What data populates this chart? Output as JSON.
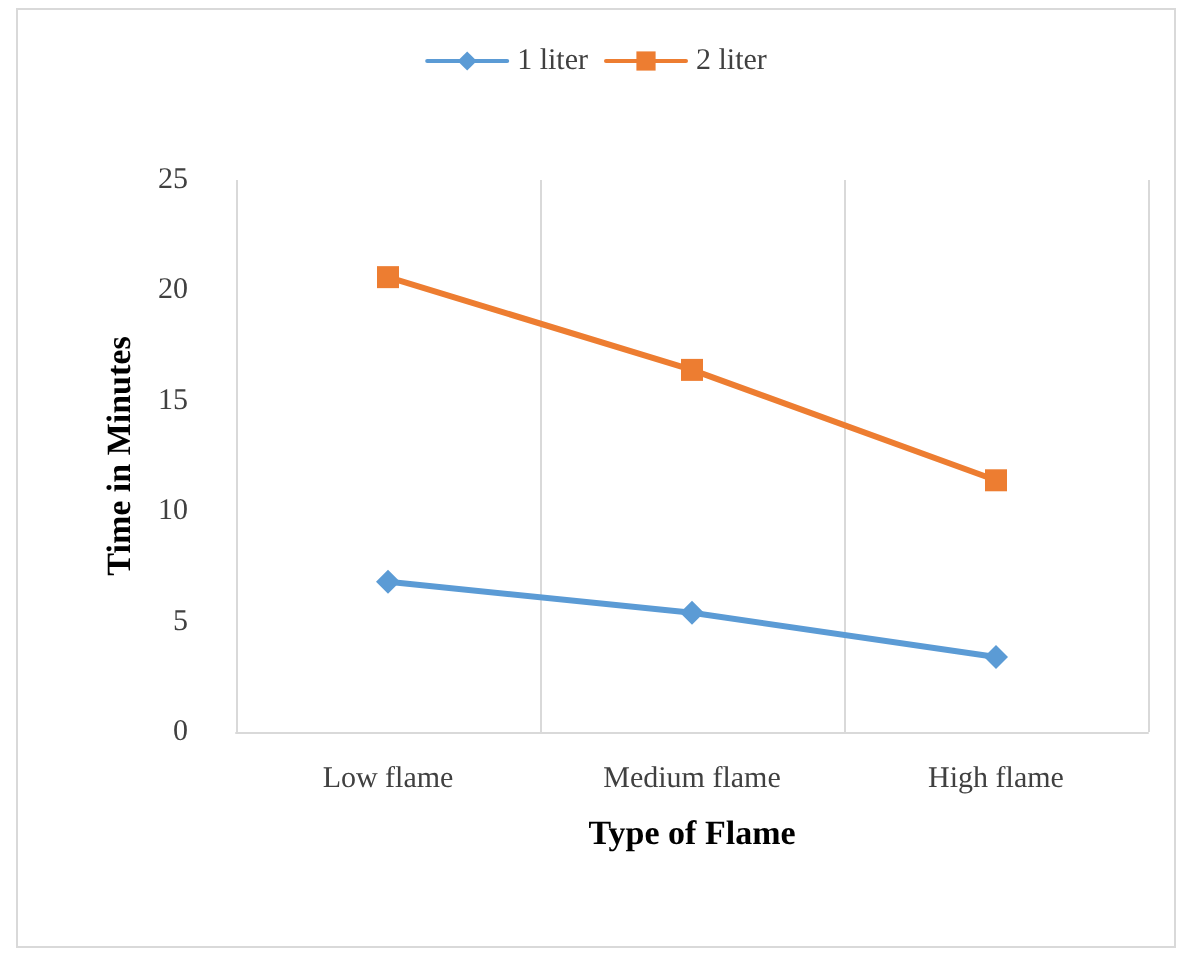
{
  "chart_data": {
    "type": "line",
    "xlabel": "Type of Flame",
    "ylabel": "Time in Minutes",
    "categories": [
      "Low flame",
      "Medium flame",
      "High flame"
    ],
    "series": [
      {
        "name": "1 liter",
        "color": "#5b9bd5",
        "marker": "diamond",
        "values": [
          6.8,
          5.4,
          3.4
        ]
      },
      {
        "name": "2 liter",
        "color": "#ed7d31",
        "marker": "square",
        "values": [
          20.6,
          16.4,
          11.4
        ]
      }
    ],
    "ylim": [
      0,
      25
    ],
    "yticks": [
      0,
      5,
      10,
      15,
      20,
      25
    ],
    "grid": "x",
    "legend": "top"
  }
}
